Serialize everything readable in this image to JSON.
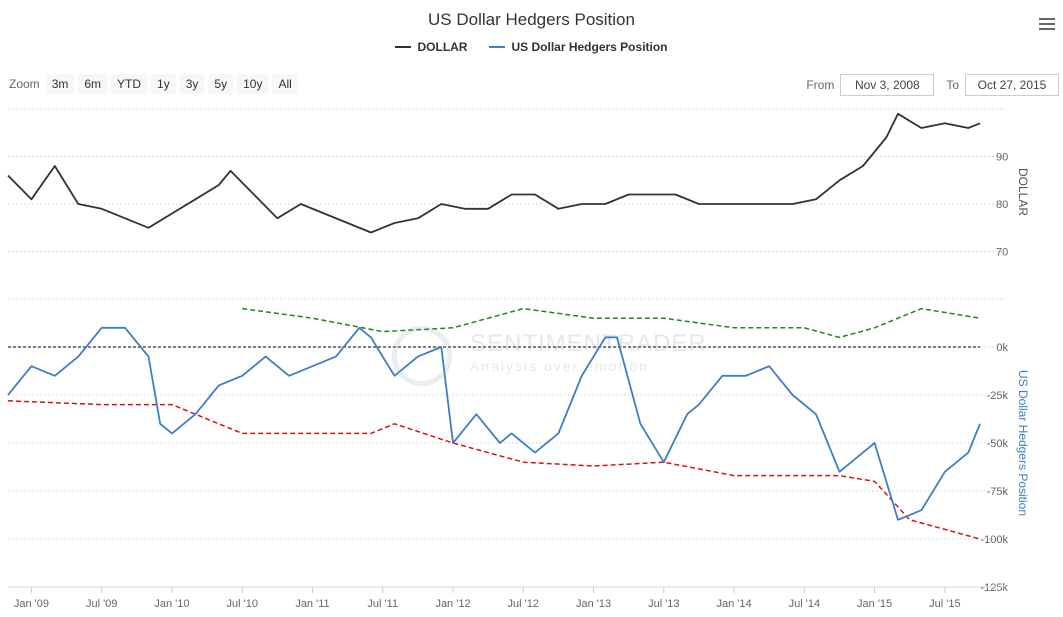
{
  "chart_title": "US Dollar Hedgers Position",
  "legend": [
    {
      "label": "DOLLAR",
      "color": "#333333"
    },
    {
      "label": "US Dollar Hedgers Position",
      "color": "#3d7fc4"
    }
  ],
  "zoom": {
    "label": "Zoom",
    "buttons": [
      "3m",
      "6m",
      "YTD",
      "1y",
      "3y",
      "5y",
      "10y",
      "All"
    ]
  },
  "range": {
    "from_label": "From",
    "from_value": "Nov 3, 2008",
    "to_label": "To",
    "to_value": "Oct 27, 2015"
  },
  "watermark": {
    "line1": "SENTIMENTRADER",
    "line2": "Analysis over emotion"
  },
  "colors": {
    "dollar": "#333333",
    "hedgers": "#3d7fc4",
    "upper_band": "#1a8a1a",
    "lower_band": "#dd1111",
    "zero_line": "#333333"
  },
  "chart_data": [
    {
      "type": "line",
      "title": "US Dollar Hedgers Position",
      "panel": "top",
      "ylabel": "DOLLAR",
      "yticks": [
        70,
        80,
        90
      ],
      "ylim": [
        60,
        100
      ],
      "series": [
        {
          "name": "DOLLAR",
          "x": [
            "2008-11",
            "2009-01",
            "2009-03",
            "2009-05",
            "2009-07",
            "2009-09",
            "2009-11",
            "2010-01",
            "2010-03",
            "2010-05",
            "2010-06",
            "2010-08",
            "2010-10",
            "2010-12",
            "2011-02",
            "2011-04",
            "2011-06",
            "2011-08",
            "2011-10",
            "2011-12",
            "2012-02",
            "2012-04",
            "2012-06",
            "2012-08",
            "2012-10",
            "2012-12",
            "2013-02",
            "2013-04",
            "2013-06",
            "2013-08",
            "2013-10",
            "2013-12",
            "2014-02",
            "2014-04",
            "2014-06",
            "2014-08",
            "2014-10",
            "2014-12",
            "2015-02",
            "2015-03",
            "2015-05",
            "2015-07",
            "2015-09",
            "2015-10"
          ],
          "values": [
            86,
            81,
            88,
            80,
            79,
            77,
            75,
            78,
            81,
            84,
            87,
            82,
            77,
            80,
            78,
            76,
            74,
            76,
            77,
            80,
            79,
            79,
            82,
            82,
            79,
            80,
            80,
            82,
            82,
            82,
            80,
            80,
            80,
            80,
            80,
            81,
            85,
            88,
            94,
            99,
            96,
            97,
            96,
            97
          ]
        }
      ]
    },
    {
      "type": "line",
      "panel": "bottom",
      "ylabel": "US Dollar Hedgers Position",
      "yticks": [
        "0k",
        "-25k",
        "-50k",
        "-75k",
        "-100k",
        "-125k"
      ],
      "ylim": [
        -125000,
        25000
      ],
      "series": [
        {
          "name": "US Dollar Hedgers Position",
          "x": [
            "2008-11",
            "2009-01",
            "2009-03",
            "2009-05",
            "2009-07",
            "2009-09",
            "2009-11",
            "2009-12",
            "2010-01",
            "2010-03",
            "2010-05",
            "2010-07",
            "2010-09",
            "2010-11",
            "2011-01",
            "2011-03",
            "2011-05",
            "2011-06",
            "2011-07",
            "2011-08",
            "2011-10",
            "2011-12",
            "2012-01",
            "2012-03",
            "2012-05",
            "2012-06",
            "2012-08",
            "2012-10",
            "2012-12",
            "2013-02",
            "2013-03",
            "2013-05",
            "2013-07",
            "2013-09",
            "2013-10",
            "2013-12",
            "2014-02",
            "2014-04",
            "2014-06",
            "2014-08",
            "2014-09",
            "2014-10",
            "2014-12",
            "2015-01",
            "2015-03",
            "2015-05",
            "2015-07",
            "2015-09",
            "2015-10"
          ],
          "values": [
            -25000,
            -10000,
            -15000,
            -5000,
            10000,
            10000,
            -5000,
            -40000,
            -45000,
            -35000,
            -20000,
            -15000,
            -5000,
            -15000,
            -10000,
            -5000,
            10000,
            5000,
            -5000,
            -15000,
            -5000,
            0,
            -50000,
            -35000,
            -50000,
            -45000,
            -55000,
            -45000,
            -15000,
            5000,
            5000,
            -40000,
            -60000,
            -35000,
            -30000,
            -15000,
            -15000,
            -10000,
            -25000,
            -35000,
            -50000,
            -65000,
            -55000,
            -50000,
            -90000,
            -85000,
            -65000,
            -55000,
            -40000
          ]
        },
        {
          "name": "",
          "color": "upper_band",
          "x": [
            "2010-07",
            "2011-01",
            "2011-07",
            "2012-01",
            "2012-07",
            "2013-01",
            "2013-07",
            "2014-01",
            "2014-07",
            "2014-10",
            "2015-01",
            "2015-05",
            "2015-10"
          ],
          "values": [
            20000,
            15000,
            8000,
            10000,
            20000,
            15000,
            15000,
            10000,
            10000,
            5000,
            10000,
            20000,
            15000
          ]
        },
        {
          "name": "",
          "color": "lower_band",
          "x": [
            "2008-11",
            "2009-07",
            "2010-01",
            "2010-07",
            "2011-01",
            "2011-06",
            "2011-08",
            "2012-01",
            "2012-07",
            "2013-01",
            "2013-07",
            "2014-01",
            "2014-07",
            "2014-10",
            "2015-01",
            "2015-04",
            "2015-07",
            "2015-10"
          ],
          "values": [
            -28000,
            -30000,
            -30000,
            -45000,
            -45000,
            -45000,
            -40000,
            -50000,
            -60000,
            -62000,
            -60000,
            -67000,
            -67000,
            -67000,
            -70000,
            -90000,
            -95000,
            -100000
          ]
        },
        {
          "name": "",
          "color": "zero_line",
          "x": [
            "2008-11",
            "2015-10"
          ],
          "values": [
            0,
            0
          ]
        }
      ]
    }
  ],
  "xaxis": {
    "ticks": [
      {
        "label": "Jan '09",
        "date": "2009-01"
      },
      {
        "label": "Jul '09",
        "date": "2009-07"
      },
      {
        "label": "Jan '10",
        "date": "2010-01"
      },
      {
        "label": "Jul '10",
        "date": "2010-07"
      },
      {
        "label": "Jan '11",
        "date": "2011-01"
      },
      {
        "label": "Jul '11",
        "date": "2011-07"
      },
      {
        "label": "Jan '12",
        "date": "2012-01"
      },
      {
        "label": "Jul '12",
        "date": "2012-07"
      },
      {
        "label": "Jan '13",
        "date": "2013-01"
      },
      {
        "label": "Jul '13",
        "date": "2013-07"
      },
      {
        "label": "Jan '14",
        "date": "2014-01"
      },
      {
        "label": "Jul '14",
        "date": "2014-07"
      },
      {
        "label": "Jan '15",
        "date": "2015-01"
      },
      {
        "label": "Jul '15",
        "date": "2015-07"
      }
    ]
  }
}
